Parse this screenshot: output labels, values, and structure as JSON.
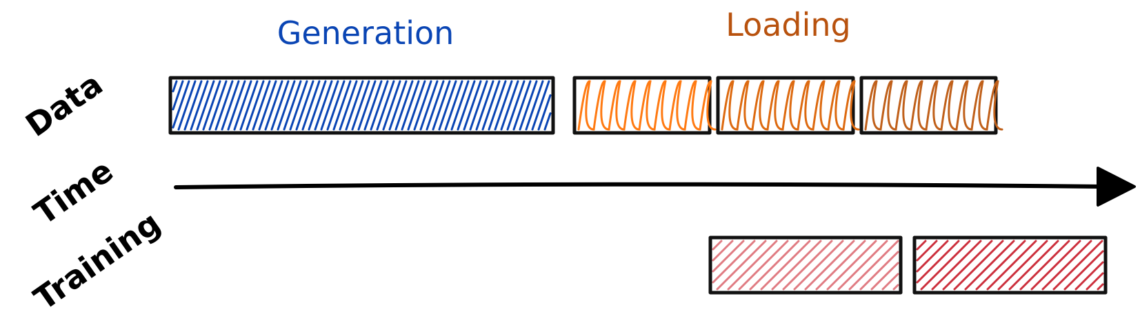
{
  "headers": {
    "generation": "Generation",
    "loading": "Loading"
  },
  "rows": {
    "data": "Data",
    "time": "Time",
    "training": "Training"
  },
  "colors": {
    "generation": "#0a45b4",
    "loading_header": "#b8520e",
    "loading_1": "#ff7a12",
    "loading_2": "#dd6a10",
    "loading_3": "#c0601a",
    "training_1": "#e07b82",
    "training_2": "#cc2f3c",
    "outline": "#111111"
  },
  "icons": {
    "time_arrow": "arrow-right-icon"
  }
}
